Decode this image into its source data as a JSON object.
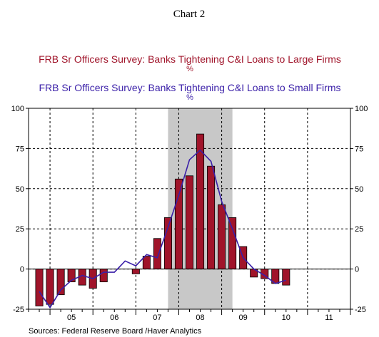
{
  "chart_data": {
    "title": "Chart 2",
    "type": "bar",
    "series": [
      {
        "name": "FRB Sr Officers Survey: Banks Tightening C&I Loans to Large Firms",
        "unit": "%",
        "render": "bar",
        "color": "#A0142A",
        "x": [
          2004.75,
          2005.0,
          2005.25,
          2005.5,
          2005.75,
          2006.0,
          2006.25,
          2006.5,
          2006.75,
          2007.0,
          2007.25,
          2007.5,
          2007.75,
          2008.0,
          2008.25,
          2008.5,
          2008.75,
          2009.0,
          2009.25,
          2009.5,
          2009.75,
          2010.0,
          2010.25,
          2010.5
        ],
        "values": [
          -23,
          -22,
          -16,
          -8,
          -10,
          -12,
          -8,
          0,
          0,
          -3,
          8,
          19,
          32,
          56,
          58,
          84,
          64,
          40,
          32,
          14,
          -5,
          -6,
          -9,
          -10
        ]
      },
      {
        "name": "FRB Sr Officers Survey: Banks Tightening C&I Loans to Small Firms",
        "unit": "%",
        "render": "line",
        "color": "#3A1FA8",
        "x": [
          2004.75,
          2005.0,
          2005.25,
          2005.5,
          2005.75,
          2006.0,
          2006.25,
          2006.5,
          2006.75,
          2007.0,
          2007.25,
          2007.5,
          2007.75,
          2008.0,
          2008.25,
          2008.5,
          2008.75,
          2009.0,
          2009.25,
          2009.5,
          2009.75,
          2010.0,
          2010.25,
          2010.5
        ],
        "values": [
          -14,
          -24,
          -13,
          -7,
          -4,
          -6,
          -2,
          -2,
          5,
          2,
          9,
          7,
          26,
          46,
          68,
          74,
          67,
          42,
          25,
          7,
          0,
          -4,
          -9,
          -7
        ]
      }
    ],
    "y_ticks": [
      "100",
      "75",
      "50",
      "25",
      "0",
      "-25"
    ],
    "ylim": [
      -25,
      100
    ],
    "x_ticks": [
      "05",
      "06",
      "07",
      "08",
      "09",
      "10",
      "11"
    ],
    "xlim": [
      2004.5,
      2012.0
    ],
    "recession_shade": [
      2007.75,
      2009.25
    ],
    "recession_color": "#c8c8c8",
    "grid": "dashed, at yearly boundaries and y ticks",
    "source": "Sources:  Federal Reserve Board /Haver Analytics"
  }
}
